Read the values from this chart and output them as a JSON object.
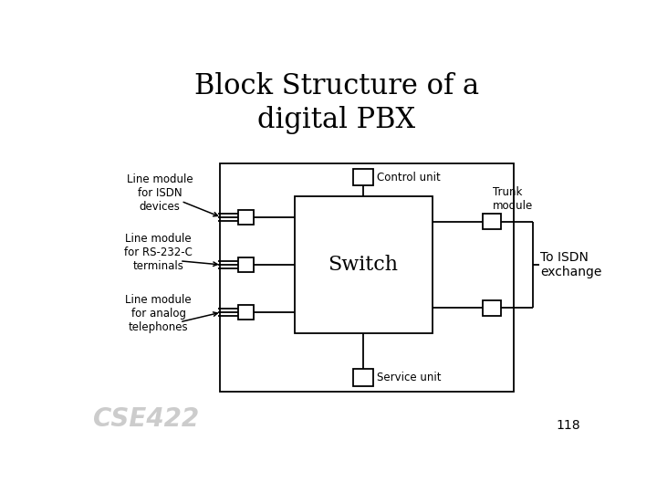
{
  "title_line1": "Block Structure of a",
  "title_line2": "digital PBX",
  "title_fontsize": 22,
  "title_family": "serif",
  "bg_color": "#ffffff",
  "box_color": "#000000",
  "text_color": "#000000",
  "small_label_fontsize": 8.5,
  "switch_label": "Switch",
  "switch_fontsize": 16,
  "control_label": "Control unit",
  "service_label": "Service unit",
  "trunk_label": "Trunk\nmodule",
  "isdn_label": "To ISDN\nexchange",
  "line_labels": [
    "Line module\nfor ISDN\ndevices",
    "Line module\nfor RS-232-C\nterminals",
    "Line module\nfor analog\ntelephones"
  ],
  "footer_text": "CSE422",
  "page_num": "118",
  "footer_fontsize": 20,
  "page_fontsize": 10,
  "lw": 1.3
}
